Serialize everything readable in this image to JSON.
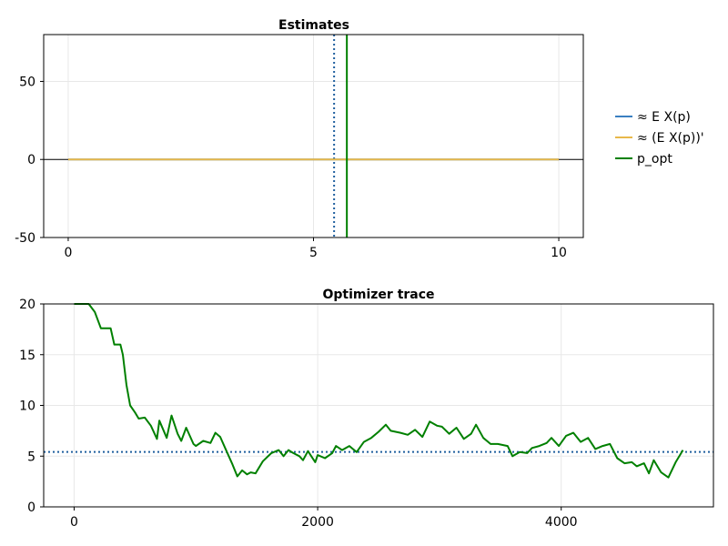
{
  "chart_data": [
    {
      "type": "line",
      "title": "Estimates",
      "xlim": [
        -0.5,
        10.5
      ],
      "ylim": [
        -50,
        80
      ],
      "xticks": [
        "0",
        "5",
        "10"
      ],
      "xtick_values": [
        0,
        5,
        10
      ],
      "yticks": [
        "-50",
        "0",
        "50"
      ],
      "ytick_values": [
        -50,
        0,
        50
      ],
      "grid": true,
      "legend_position": "right",
      "series": [
        {
          "name": "≈ E X(p)",
          "color": "#3a7fc1",
          "x": [
            0,
            10
          ],
          "y": [
            0,
            0
          ]
        },
        {
          "name": "≈ (E X(p))'",
          "color": "#e8b84a",
          "x": [
            0,
            10
          ],
          "y": [
            0,
            0
          ]
        },
        {
          "name": "p_opt",
          "color": "#008000",
          "vline": 5.68
        }
      ],
      "zero_line": {
        "y": 0,
        "color": "#000000"
      },
      "dotted_vline": {
        "x": 5.42,
        "color": "#1f5f9f"
      }
    },
    {
      "type": "line",
      "title": "Optimizer trace",
      "xlim": [
        -250,
        5250
      ],
      "ylim": [
        0,
        20
      ],
      "xticks": [
        "0",
        "2000",
        "4000"
      ],
      "xtick_values": [
        0,
        2000,
        4000
      ],
      "yticks": [
        "0",
        "5",
        "10",
        "15",
        "20"
      ],
      "ytick_values": [
        0,
        5,
        10,
        15,
        20
      ],
      "grid": true,
      "dotted_hline": {
        "y": 5.42,
        "color": "#1f5f9f"
      },
      "series": [
        {
          "color": "#008000",
          "x": [
            0,
            120,
            170,
            220,
            300,
            330,
            380,
            400,
            430,
            460,
            500,
            530,
            580,
            630,
            680,
            700,
            760,
            800,
            850,
            880,
            920,
            980,
            1000,
            1060,
            1120,
            1160,
            1200,
            1240,
            1300,
            1340,
            1380,
            1420,
            1450,
            1490,
            1550,
            1620,
            1680,
            1720,
            1760,
            1800,
            1850,
            1880,
            1920,
            1980,
            2000,
            2060,
            2120,
            2150,
            2200,
            2260,
            2320,
            2380,
            2440,
            2500,
            2560,
            2600,
            2680,
            2740,
            2800,
            2860,
            2920,
            2980,
            3020,
            3080,
            3140,
            3200,
            3260,
            3300,
            3360,
            3420,
            3480,
            3560,
            3600,
            3660,
            3720,
            3760,
            3820,
            3880,
            3920,
            3980,
            4040,
            4100,
            4160,
            4220,
            4280,
            4340,
            4400,
            4460,
            4520,
            4580,
            4620,
            4680,
            4720,
            4760,
            4820,
            4880,
            4940,
            5000
          ],
          "y": [
            20,
            20,
            19.2,
            17.6,
            17.6,
            16,
            16,
            15,
            12,
            10,
            9.3,
            8.7,
            8.8,
            8,
            6.7,
            8.5,
            6.8,
            9.0,
            7.2,
            6.5,
            7.8,
            6.2,
            6.0,
            6.5,
            6.3,
            7.3,
            6.9,
            5.8,
            4.2,
            3.0,
            3.6,
            3.2,
            3.4,
            3.3,
            4.5,
            5.3,
            5.6,
            5.0,
            5.6,
            5.3,
            5.0,
            4.6,
            5.5,
            4.4,
            5.1,
            4.8,
            5.3,
            6.0,
            5.6,
            6.0,
            5.4,
            6.4,
            6.8,
            7.4,
            8.1,
            7.5,
            7.3,
            7.1,
            7.6,
            6.9,
            8.4,
            8.0,
            7.9,
            7.2,
            7.8,
            6.7,
            7.2,
            8.1,
            6.8,
            6.2,
            6.2,
            6.0,
            5.0,
            5.4,
            5.3,
            5.8,
            6.0,
            6.3,
            6.8,
            6.0,
            7.0,
            7.3,
            6.4,
            6.8,
            5.7,
            6.0,
            6.2,
            4.8,
            4.3,
            4.4,
            4.0,
            4.3,
            3.3,
            4.6,
            3.4,
            2.9,
            4.4,
            5.6
          ]
        }
      ]
    }
  ]
}
